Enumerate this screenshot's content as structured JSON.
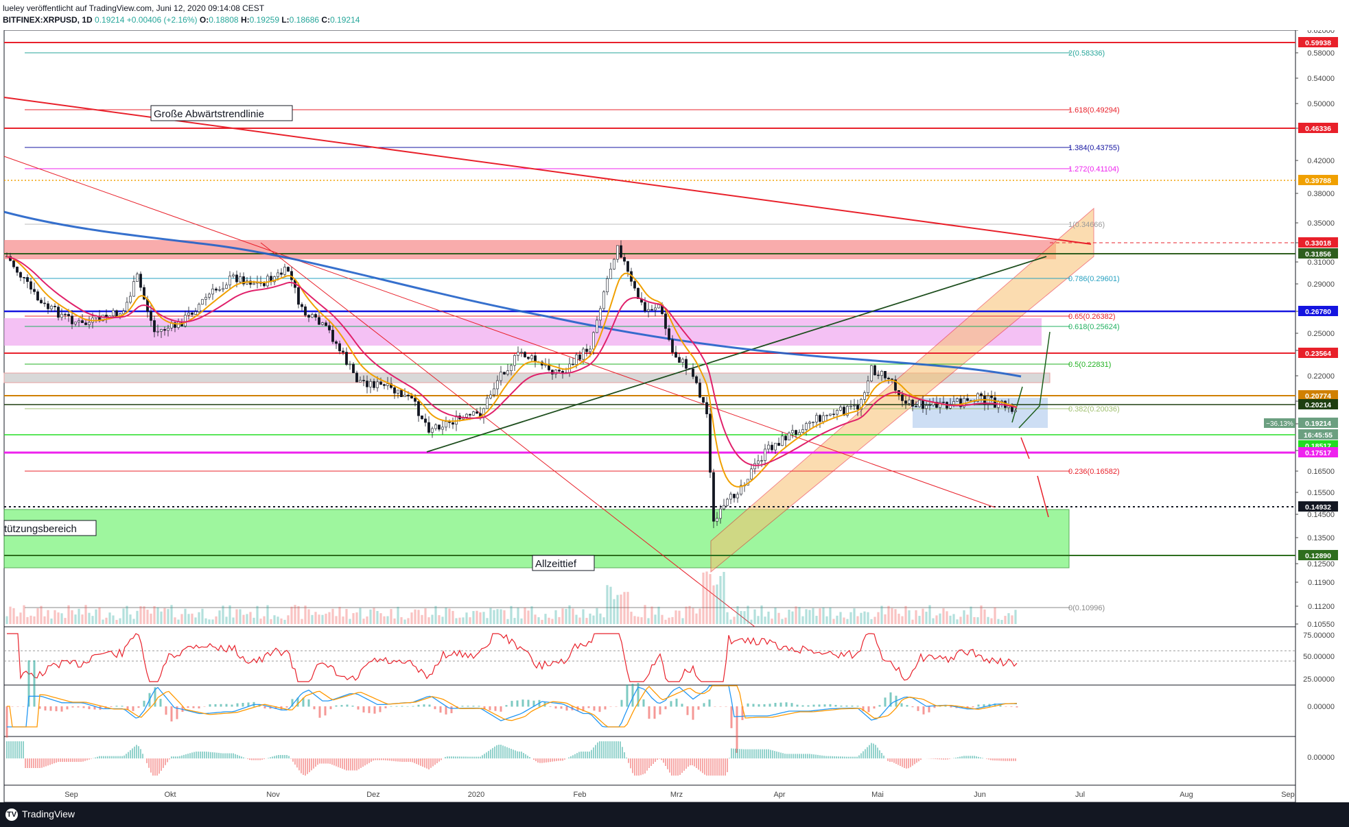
{
  "header": {
    "publisher_line": "lueley veröffentlicht auf TradingView.com, Juni 12, 2020 09:14:08 CEST",
    "symbol": "BITFINEX:XRPUSD, 1D",
    "last": "0.19214",
    "change": "+0.00406 (+2.16%)",
    "open_label": "O:",
    "open": "0.18808",
    "high_label": "H:",
    "high": "0.19259",
    "low_label": "L:",
    "low": "0.18686",
    "close_label": "C:",
    "close": "0.19214"
  },
  "footer": {
    "brand": "TradingView",
    "logo_icon": "tradingview-logo-icon"
  },
  "chart_data": {
    "type": "candlestick",
    "symbol": "BITFINEX:XRPUSD",
    "interval": "1D",
    "y_axis_ticks": [
      "0.62000",
      "0.58000",
      "0.54000",
      "0.50000",
      "0.46000",
      "0.42000",
      "0.38000",
      "0.35000",
      "0.33000",
      "0.31000",
      "0.29000",
      "0.27000",
      "0.25000",
      "0.23500",
      "0.22000",
      "0.20500",
      "0.19000",
      "0.17500",
      "0.16500",
      "0.15500",
      "0.14500",
      "0.13500",
      "0.12500",
      "0.11900",
      "0.11200",
      "0.10550"
    ],
    "x_axis_ticks": [
      {
        "label": "Sep",
        "px": 104
      },
      {
        "label": "Okt",
        "px": 248
      },
      {
        "label": "Nov",
        "px": 398
      },
      {
        "label": "Dez",
        "px": 544
      },
      {
        "label": "2020",
        "px": 694
      },
      {
        "label": "Feb",
        "px": 845
      },
      {
        "label": "Mrz",
        "px": 986
      },
      {
        "label": "Apr",
        "px": 1136
      },
      {
        "label": "Mai",
        "px": 1279
      },
      {
        "label": "Jun",
        "px": 1428
      },
      {
        "label": "Jul",
        "px": 1574
      },
      {
        "label": "Aug",
        "px": 1729
      },
      {
        "label": "Sep",
        "px": 1877
      }
    ],
    "price_labels": [
      {
        "value": "0.59938",
        "color": "#e8202a"
      },
      {
        "value": "0.46336",
        "color": "#e8202a"
      },
      {
        "value": "0.39788",
        "color": "#f0a000"
      },
      {
        "value": "0.33018",
        "color": "#e8202a"
      },
      {
        "value": "0.31856",
        "color": "#2e5e1e"
      },
      {
        "value": "0.26780",
        "color": "#1414e0"
      },
      {
        "value": "0.23564",
        "color": "#e8202a"
      },
      {
        "value": "0.20774",
        "color": "#d08000"
      },
      {
        "value": "0.20214",
        "color": "#1e3e10"
      },
      {
        "value": "0.19214",
        "color": "#6b9f80"
      },
      {
        "value": "16:45:55",
        "color": "#6b9f80"
      },
      {
        "value": "0.18517",
        "color": "#22dd22"
      },
      {
        "value": "0.17517",
        "color": "#ee22ee"
      },
      {
        "value": "0.14932",
        "color": "#131722"
      },
      {
        "value": "0.12890",
        "color": "#2e6e1e"
      }
    ],
    "change_badge": "−36.13%",
    "fib_levels": [
      {
        "text": "2(0.58336)",
        "color": "#26a69a"
      },
      {
        "text": "1.618(0.49294)",
        "color": "#e8202a"
      },
      {
        "text": "1.384(0.43755)",
        "color": "#1414a0"
      },
      {
        "text": "1.272(0.41104)",
        "color": "#ee22ee"
      },
      {
        "text": "1(0.34666)",
        "color": "#999999"
      },
      {
        "text": "0.786(0.29601)",
        "color": "#26a0c0"
      },
      {
        "text": "0.65(0.26382)",
        "color": "#e8202a"
      },
      {
        "text": "0.618(0.25624)",
        "color": "#20b060"
      },
      {
        "text": "0.5(0.22831)",
        "color": "#20b020"
      },
      {
        "text": "0.382(0.20036)",
        "color": "#a0c070"
      },
      {
        "text": "0.236(0.16582)",
        "color": "#e8202a"
      },
      {
        "text": "0(0.10996)",
        "color": "#888888"
      }
    ],
    "annotations": [
      "Große Abwärtstrendlinie",
      "Allzeittief",
      "tützungsbereich"
    ],
    "rsi_ticks": [
      "75.00000",
      "50.00000",
      "25.00000"
    ],
    "macd_ticks": [
      "0.00000"
    ],
    "ao_ticks": [
      "0.00000"
    ]
  }
}
